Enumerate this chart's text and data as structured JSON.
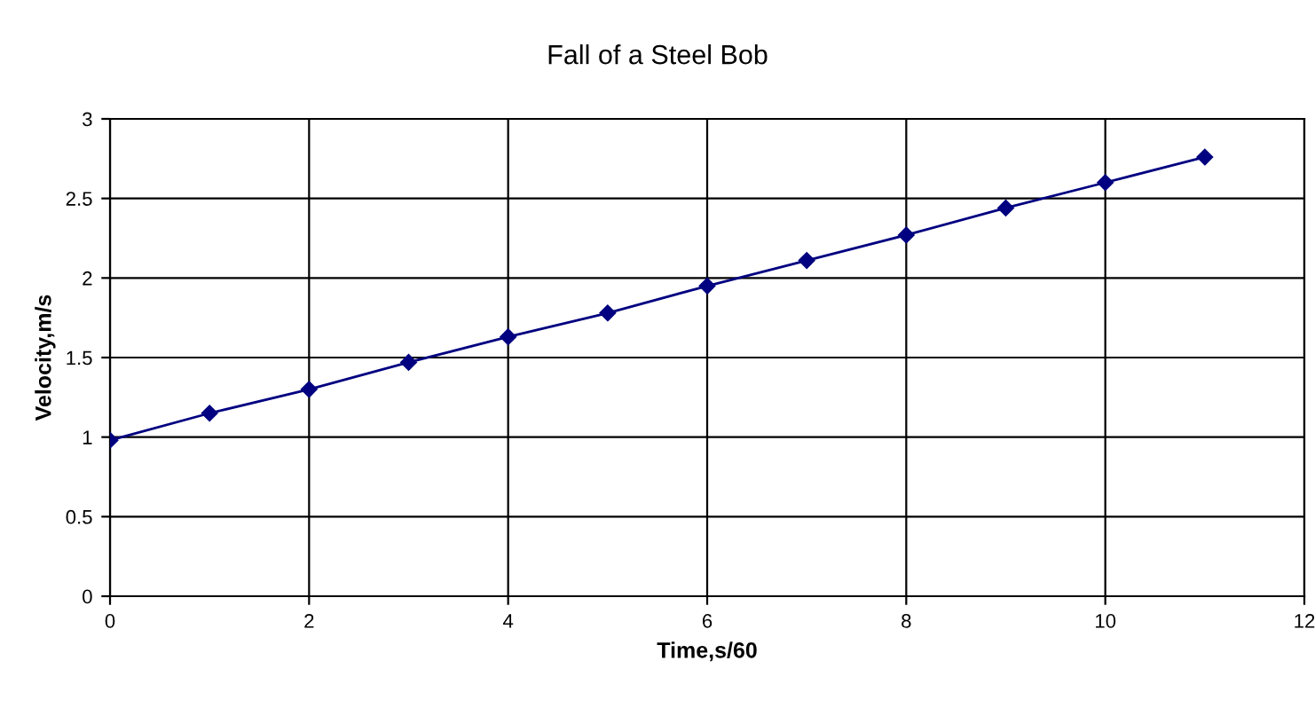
{
  "chart_data": {
    "type": "line",
    "title": "Fall of a Steel Bob",
    "xlabel": "Time,s/60",
    "ylabel": "Velocity,m/s",
    "x": [
      0,
      1,
      2,
      3,
      4,
      5,
      6,
      7,
      8,
      9,
      10,
      11
    ],
    "series": [
      {
        "color": "#000080",
        "values": [
          0.98,
          1.15,
          1.3,
          1.47,
          1.63,
          1.78,
          1.95,
          2.11,
          2.27,
          2.44,
          2.6,
          2.76
        ]
      }
    ],
    "xlim": [
      0,
      12
    ],
    "xticks": [
      0,
      2,
      4,
      6,
      8,
      10,
      12
    ],
    "ylim": [
      0,
      3
    ],
    "yticks": [
      0,
      0.5,
      1,
      1.5,
      2,
      2.5,
      3
    ],
    "grid": true,
    "marker": "diamond",
    "line_style": "solid"
  }
}
